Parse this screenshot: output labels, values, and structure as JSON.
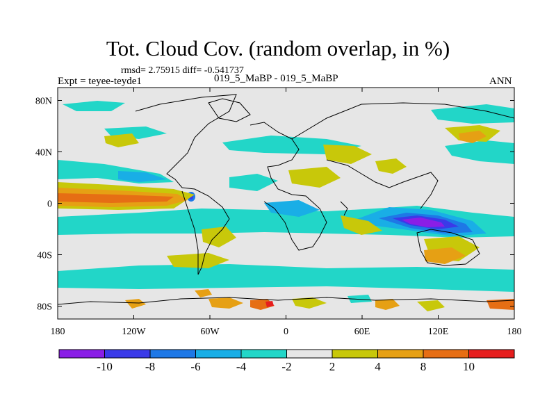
{
  "figure": {
    "title": "Tot. Cloud Cov. (random overlap, in %)",
    "stats_text": "rmsd= 2.75915 diff= -0.541737",
    "experiment_text": "Expt = teyee-teyde1",
    "case_text": "019_5_MaBP - 019_5_MaBP",
    "season": "ANN"
  },
  "axes": {
    "lon_ticks": [
      {
        "value": -180,
        "label": "180"
      },
      {
        "value": -120,
        "label": "120W"
      },
      {
        "value": -60,
        "label": "60W"
      },
      {
        "value": 0,
        "label": "0"
      },
      {
        "value": 60,
        "label": "60E"
      },
      {
        "value": 120,
        "label": "120E"
      },
      {
        "value": 180,
        "label": "180"
      }
    ],
    "lat_ticks": [
      {
        "value": 80,
        "label": "80N"
      },
      {
        "value": 40,
        "label": "40N"
      },
      {
        "value": 0,
        "label": "0"
      },
      {
        "value": -40,
        "label": "40S"
      },
      {
        "value": -80,
        "label": "80S"
      }
    ],
    "lon_range": [
      -180,
      180
    ],
    "lat_range": [
      -90,
      90
    ]
  },
  "colorbar": {
    "levels": [
      {
        "label": "-10"
      },
      {
        "label": "-8"
      },
      {
        "label": "-6"
      },
      {
        "label": "-4"
      },
      {
        "label": "-2"
      },
      {
        "label": "2"
      },
      {
        "label": "4"
      },
      {
        "label": "8"
      },
      {
        "label": "10"
      }
    ],
    "colors": [
      "#8a1ee6",
      "#3a3ae8",
      "#1e78e6",
      "#19aee6",
      "#22d6c8",
      "#e6e6e6",
      "#c8c80a",
      "#e6a014",
      "#e66e14",
      "#e61e1e"
    ]
  },
  "colors": {
    "background": "#e6e6e6",
    "cyan": "#22d6c8",
    "skyblue": "#19aee6",
    "blue": "#1e78e6",
    "darkblue": "#3a3ae8",
    "purple": "#8a1ee6",
    "olive": "#c8c80a",
    "orange": "#e6a014",
    "darkorange": "#e66e14",
    "red": "#e61e1e"
  }
}
